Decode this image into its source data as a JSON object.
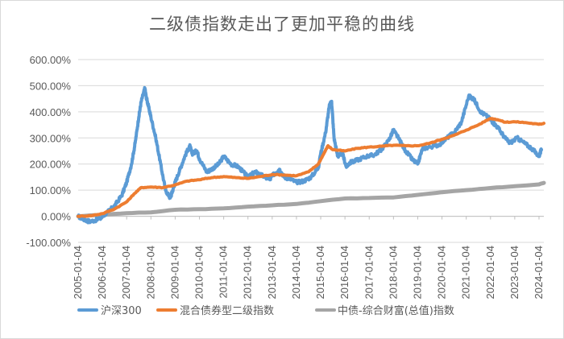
{
  "chart_data": {
    "type": "line",
    "title": "二级债指数走出了更加平稳的曲线",
    "xlabel": "",
    "ylabel": "",
    "ylim": [
      -100,
      600
    ],
    "ytick_labels": [
      "-100.00%",
      "0.00%",
      "100.00%",
      "200.00%",
      "300.00%",
      "400.00%",
      "500.00%",
      "600.00%"
    ],
    "ytick_values": [
      -100,
      0,
      100,
      200,
      300,
      400,
      500,
      600
    ],
    "xtick_labels": [
      "2005-01-04",
      "2006-01-04",
      "2007-01-04",
      "2008-01-04",
      "2009-01-04",
      "2010-01-04",
      "2011-01-04",
      "2012-01-04",
      "2013-01-04",
      "2014-01-04",
      "2015-01-04",
      "2016-01-04",
      "2017-01-04",
      "2018-01-04",
      "2019-01-04",
      "2020-01-04",
      "2021-01-04",
      "2022-01-04",
      "2023-01-04",
      "2024-01-04"
    ],
    "xlim": [
      2005.0,
      2024.2
    ],
    "grid": true,
    "legend_position": "bottom",
    "series": [
      {
        "name": "沪深300",
        "color": "#5b9bd5",
        "x": [
          2005.0,
          2005.3,
          2005.5,
          2005.9,
          2006.2,
          2006.5,
          2006.8,
          2007.0,
          2007.2,
          2007.35,
          2007.5,
          2007.6,
          2007.75,
          2007.8,
          2007.9,
          2008.0,
          2008.2,
          2008.4,
          2008.6,
          2008.8,
          2008.9,
          2009.0,
          2009.2,
          2009.4,
          2009.6,
          2009.7,
          2009.9,
          2010.0,
          2010.3,
          2010.5,
          2010.8,
          2011.0,
          2011.3,
          2011.6,
          2011.9,
          2012.0,
          2012.3,
          2012.5,
          2012.9,
          2013.1,
          2013.3,
          2013.5,
          2013.7,
          2014.0,
          2014.3,
          2014.6,
          2014.9,
          2015.0,
          2015.2,
          2015.35,
          2015.45,
          2015.55,
          2015.7,
          2015.9,
          2016.05,
          2016.2,
          2016.5,
          2016.9,
          2017.2,
          2017.5,
          2017.8,
          2018.0,
          2018.2,
          2018.5,
          2018.8,
          2019.0,
          2019.2,
          2019.5,
          2019.9,
          2020.2,
          2020.5,
          2020.8,
          2021.1,
          2021.3,
          2021.6,
          2021.9,
          2022.1,
          2022.3,
          2022.6,
          2022.8,
          2023.1,
          2023.4,
          2023.7,
          2024.0,
          2024.1
        ],
        "y": [
          0,
          -15,
          -20,
          -10,
          15,
          40,
          80,
          130,
          200,
          280,
          380,
          440,
          490,
          460,
          420,
          380,
          300,
          200,
          100,
          70,
          100,
          130,
          180,
          230,
          270,
          240,
          250,
          220,
          170,
          180,
          200,
          230,
          200,
          190,
          160,
          150,
          170,
          160,
          140,
          165,
          180,
          150,
          145,
          130,
          135,
          150,
          185,
          240,
          320,
          420,
          440,
          300,
          230,
          240,
          190,
          205,
          215,
          230,
          235,
          255,
          290,
          330,
          300,
          250,
          215,
          200,
          260,
          265,
          275,
          300,
          320,
          360,
          460,
          450,
          400,
          380,
          360,
          340,
          300,
          280,
          300,
          280,
          260,
          230,
          255
        ]
      },
      {
        "name": "混合债券型二级指数",
        "color": "#ed7d31",
        "x": [
          2005.0,
          2005.5,
          2006.0,
          2006.5,
          2007.0,
          2007.3,
          2007.6,
          2008.0,
          2008.5,
          2009.0,
          2009.5,
          2010.0,
          2010.5,
          2011.0,
          2011.5,
          2012.0,
          2012.5,
          2013.0,
          2013.5,
          2014.0,
          2014.5,
          2014.9,
          2015.1,
          2015.3,
          2015.5,
          2016.0,
          2016.5,
          2017.0,
          2017.5,
          2018.0,
          2018.5,
          2019.0,
          2019.5,
          2020.0,
          2020.5,
          2021.0,
          2021.5,
          2022.0,
          2022.3,
          2022.6,
          2023.0,
          2023.5,
          2024.0,
          2024.2
        ],
        "y": [
          0,
          2,
          10,
          28,
          55,
          85,
          110,
          112,
          110,
          120,
          135,
          140,
          148,
          152,
          148,
          145,
          152,
          160,
          158,
          155,
          170,
          200,
          235,
          270,
          255,
          250,
          260,
          265,
          268,
          272,
          270,
          270,
          280,
          295,
          310,
          330,
          350,
          375,
          370,
          360,
          362,
          358,
          352,
          356
        ]
      },
      {
        "name": "中债-综合财富(总值)指数",
        "color": "#a5a5a5",
        "x": [
          2005.0,
          2006.0,
          2007.0,
          2008.0,
          2009.0,
          2010.0,
          2011.0,
          2012.0,
          2013.0,
          2014.0,
          2015.0,
          2016.0,
          2017.0,
          2018.0,
          2019.0,
          2020.0,
          2021.0,
          2022.0,
          2023.0,
          2024.0,
          2024.2
        ],
        "y": [
          0,
          6,
          12,
          15,
          25,
          27,
          30,
          37,
          42,
          47,
          58,
          68,
          70,
          72,
          82,
          92,
          100,
          108,
          115,
          122,
          128
        ]
      }
    ]
  }
}
